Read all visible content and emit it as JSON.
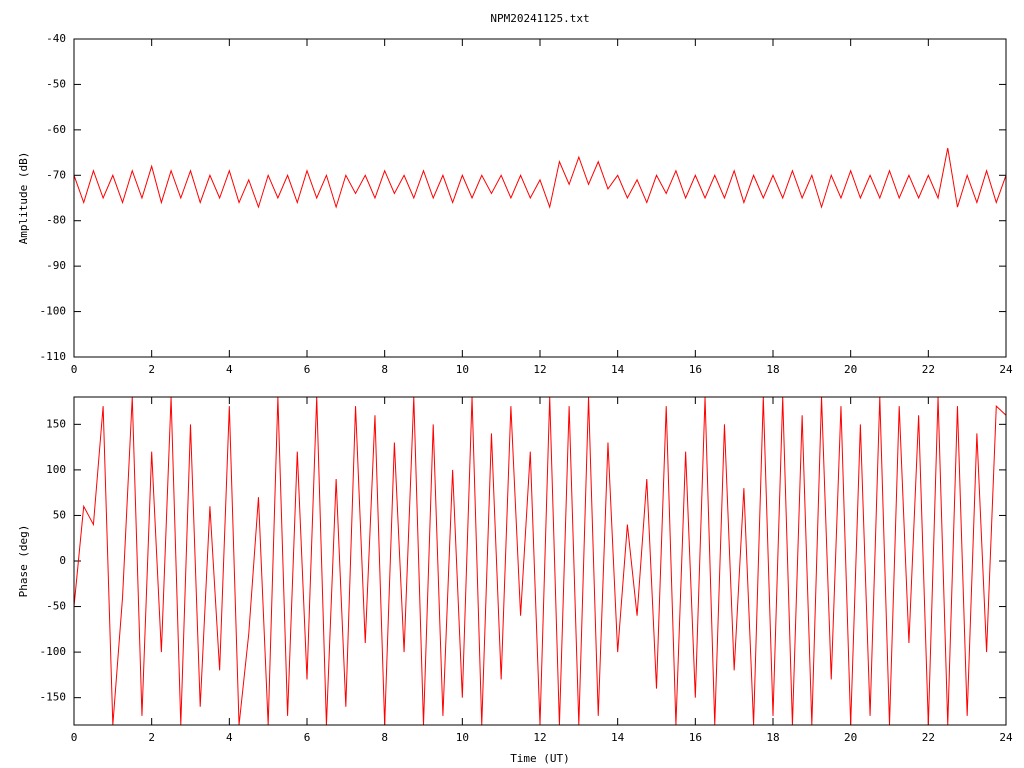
{
  "chart_data": [
    {
      "type": "line",
      "title": "NPM20241125.txt",
      "y_label": "Amplitude (dB)",
      "color": "#ff0000",
      "grid": false,
      "xlim": [
        0,
        24
      ],
      "xticks": [
        0,
        2,
        4,
        6,
        8,
        10,
        12,
        14,
        16,
        18,
        20,
        22,
        24
      ],
      "ylim": [
        -110,
        -40
      ],
      "yticks": [
        -40,
        -50,
        -60,
        -70,
        -80,
        -90,
        -100,
        -110
      ],
      "x": [
        0,
        0.25,
        0.5,
        0.75,
        1,
        1.25,
        1.5,
        1.75,
        2,
        2.25,
        2.5,
        2.75,
        3,
        3.25,
        3.5,
        3.75,
        4,
        4.25,
        4.5,
        4.75,
        5,
        5.25,
        5.5,
        5.75,
        6,
        6.25,
        6.5,
        6.75,
        7,
        7.25,
        7.5,
        7.75,
        8,
        8.25,
        8.5,
        8.75,
        9,
        9.25,
        9.5,
        9.75,
        10,
        10.25,
        10.5,
        10.75,
        11,
        11.25,
        11.5,
        11.75,
        12,
        12.25,
        12.5,
        12.75,
        13,
        13.25,
        13.5,
        13.75,
        14,
        14.25,
        14.5,
        14.75,
        15,
        15.25,
        15.5,
        15.75,
        16,
        16.25,
        16.5,
        16.75,
        17,
        17.25,
        17.5,
        17.75,
        18,
        18.25,
        18.5,
        18.75,
        19,
        19.25,
        19.5,
        19.75,
        20,
        20.25,
        20.5,
        20.75,
        21,
        21.25,
        21.5,
        21.75,
        22,
        22.25,
        22.5,
        22.75,
        23,
        23.25,
        23.5,
        23.75,
        24
      ],
      "values": [
        -70,
        -76,
        -69,
        -75,
        -70,
        -76,
        -69,
        -75,
        -68,
        -76,
        -69,
        -75,
        -69,
        -76,
        -70,
        -75,
        -69,
        -76,
        -71,
        -77,
        -70,
        -75,
        -70,
        -76,
        -69,
        -75,
        -70,
        -77,
        -70,
        -74,
        -70,
        -75,
        -69,
        -74,
        -70,
        -75,
        -69,
        -75,
        -70,
        -76,
        -70,
        -75,
        -70,
        -74,
        -70,
        -75,
        -70,
        -75,
        -71,
        -77,
        -67,
        -72,
        -66,
        -72,
        -67,
        -73,
        -70,
        -75,
        -71,
        -76,
        -70,
        -74,
        -69,
        -75,
        -70,
        -75,
        -70,
        -75,
        -69,
        -76,
        -70,
        -75,
        -70,
        -75,
        -69,
        -75,
        -70,
        -77,
        -70,
        -75,
        -69,
        -75,
        -70,
        -75,
        -69,
        -75,
        -70,
        -75,
        -70,
        -75,
        -64,
        -77,
        -70,
        -76,
        -69,
        -76,
        -70
      ]
    },
    {
      "type": "line",
      "x_label": "Time (UT)",
      "y_label": "Phase (deg)",
      "color": "#ff0000",
      "grid": false,
      "xlim": [
        0,
        24
      ],
      "xticks": [
        0,
        2,
        4,
        6,
        8,
        10,
        12,
        14,
        16,
        18,
        20,
        22,
        24
      ],
      "ylim": [
        -180,
        180
      ],
      "yticks": [
        150,
        100,
        50,
        0,
        -50,
        -100,
        -150
      ],
      "x": [
        0,
        0.25,
        0.5,
        0.75,
        1,
        1.25,
        1.5,
        1.75,
        2,
        2.25,
        2.5,
        2.75,
        3,
        3.25,
        3.5,
        3.75,
        4,
        4.25,
        4.5,
        4.75,
        5,
        5.25,
        5.5,
        5.75,
        6,
        6.25,
        6.5,
        6.75,
        7,
        7.25,
        7.5,
        7.75,
        8,
        8.25,
        8.5,
        8.75,
        9,
        9.25,
        9.5,
        9.75,
        10,
        10.25,
        10.5,
        10.75,
        11,
        11.25,
        11.5,
        11.75,
        12,
        12.25,
        12.5,
        12.75,
        13,
        13.25,
        13.5,
        13.75,
        14,
        14.25,
        14.5,
        14.75,
        15,
        15.25,
        15.5,
        15.75,
        16,
        16.25,
        16.5,
        16.75,
        17,
        17.25,
        17.5,
        17.75,
        18,
        18.25,
        18.5,
        18.75,
        19,
        19.25,
        19.5,
        19.75,
        20,
        20.25,
        20.5,
        20.75,
        21,
        21.25,
        21.5,
        21.75,
        22,
        22.25,
        22.5,
        22.75,
        23,
        23.25,
        23.5,
        23.75,
        24
      ],
      "values": [
        -50,
        60,
        40,
        170,
        -180,
        -40,
        180,
        -170,
        120,
        -100,
        180,
        -180,
        150,
        -160,
        60,
        -120,
        170,
        -180,
        -80,
        70,
        -180,
        180,
        -170,
        120,
        -130,
        180,
        -180,
        90,
        -160,
        170,
        -90,
        160,
        -180,
        130,
        -100,
        180,
        -180,
        150,
        -170,
        100,
        -150,
        180,
        -180,
        140,
        -130,
        170,
        -60,
        120,
        -180,
        180,
        -180,
        170,
        -180,
        180,
        -170,
        130,
        -100,
        40,
        -60,
        90,
        -140,
        170,
        -180,
        120,
        -150,
        180,
        -180,
        150,
        -120,
        80,
        -180,
        180,
        -170,
        180,
        -180,
        160,
        -180,
        180,
        -130,
        170,
        -180,
        150,
        -170,
        180,
        -180,
        170,
        -90,
        160,
        -180,
        180,
        -180,
        170,
        -170,
        140,
        -100,
        170,
        160
      ]
    }
  ]
}
